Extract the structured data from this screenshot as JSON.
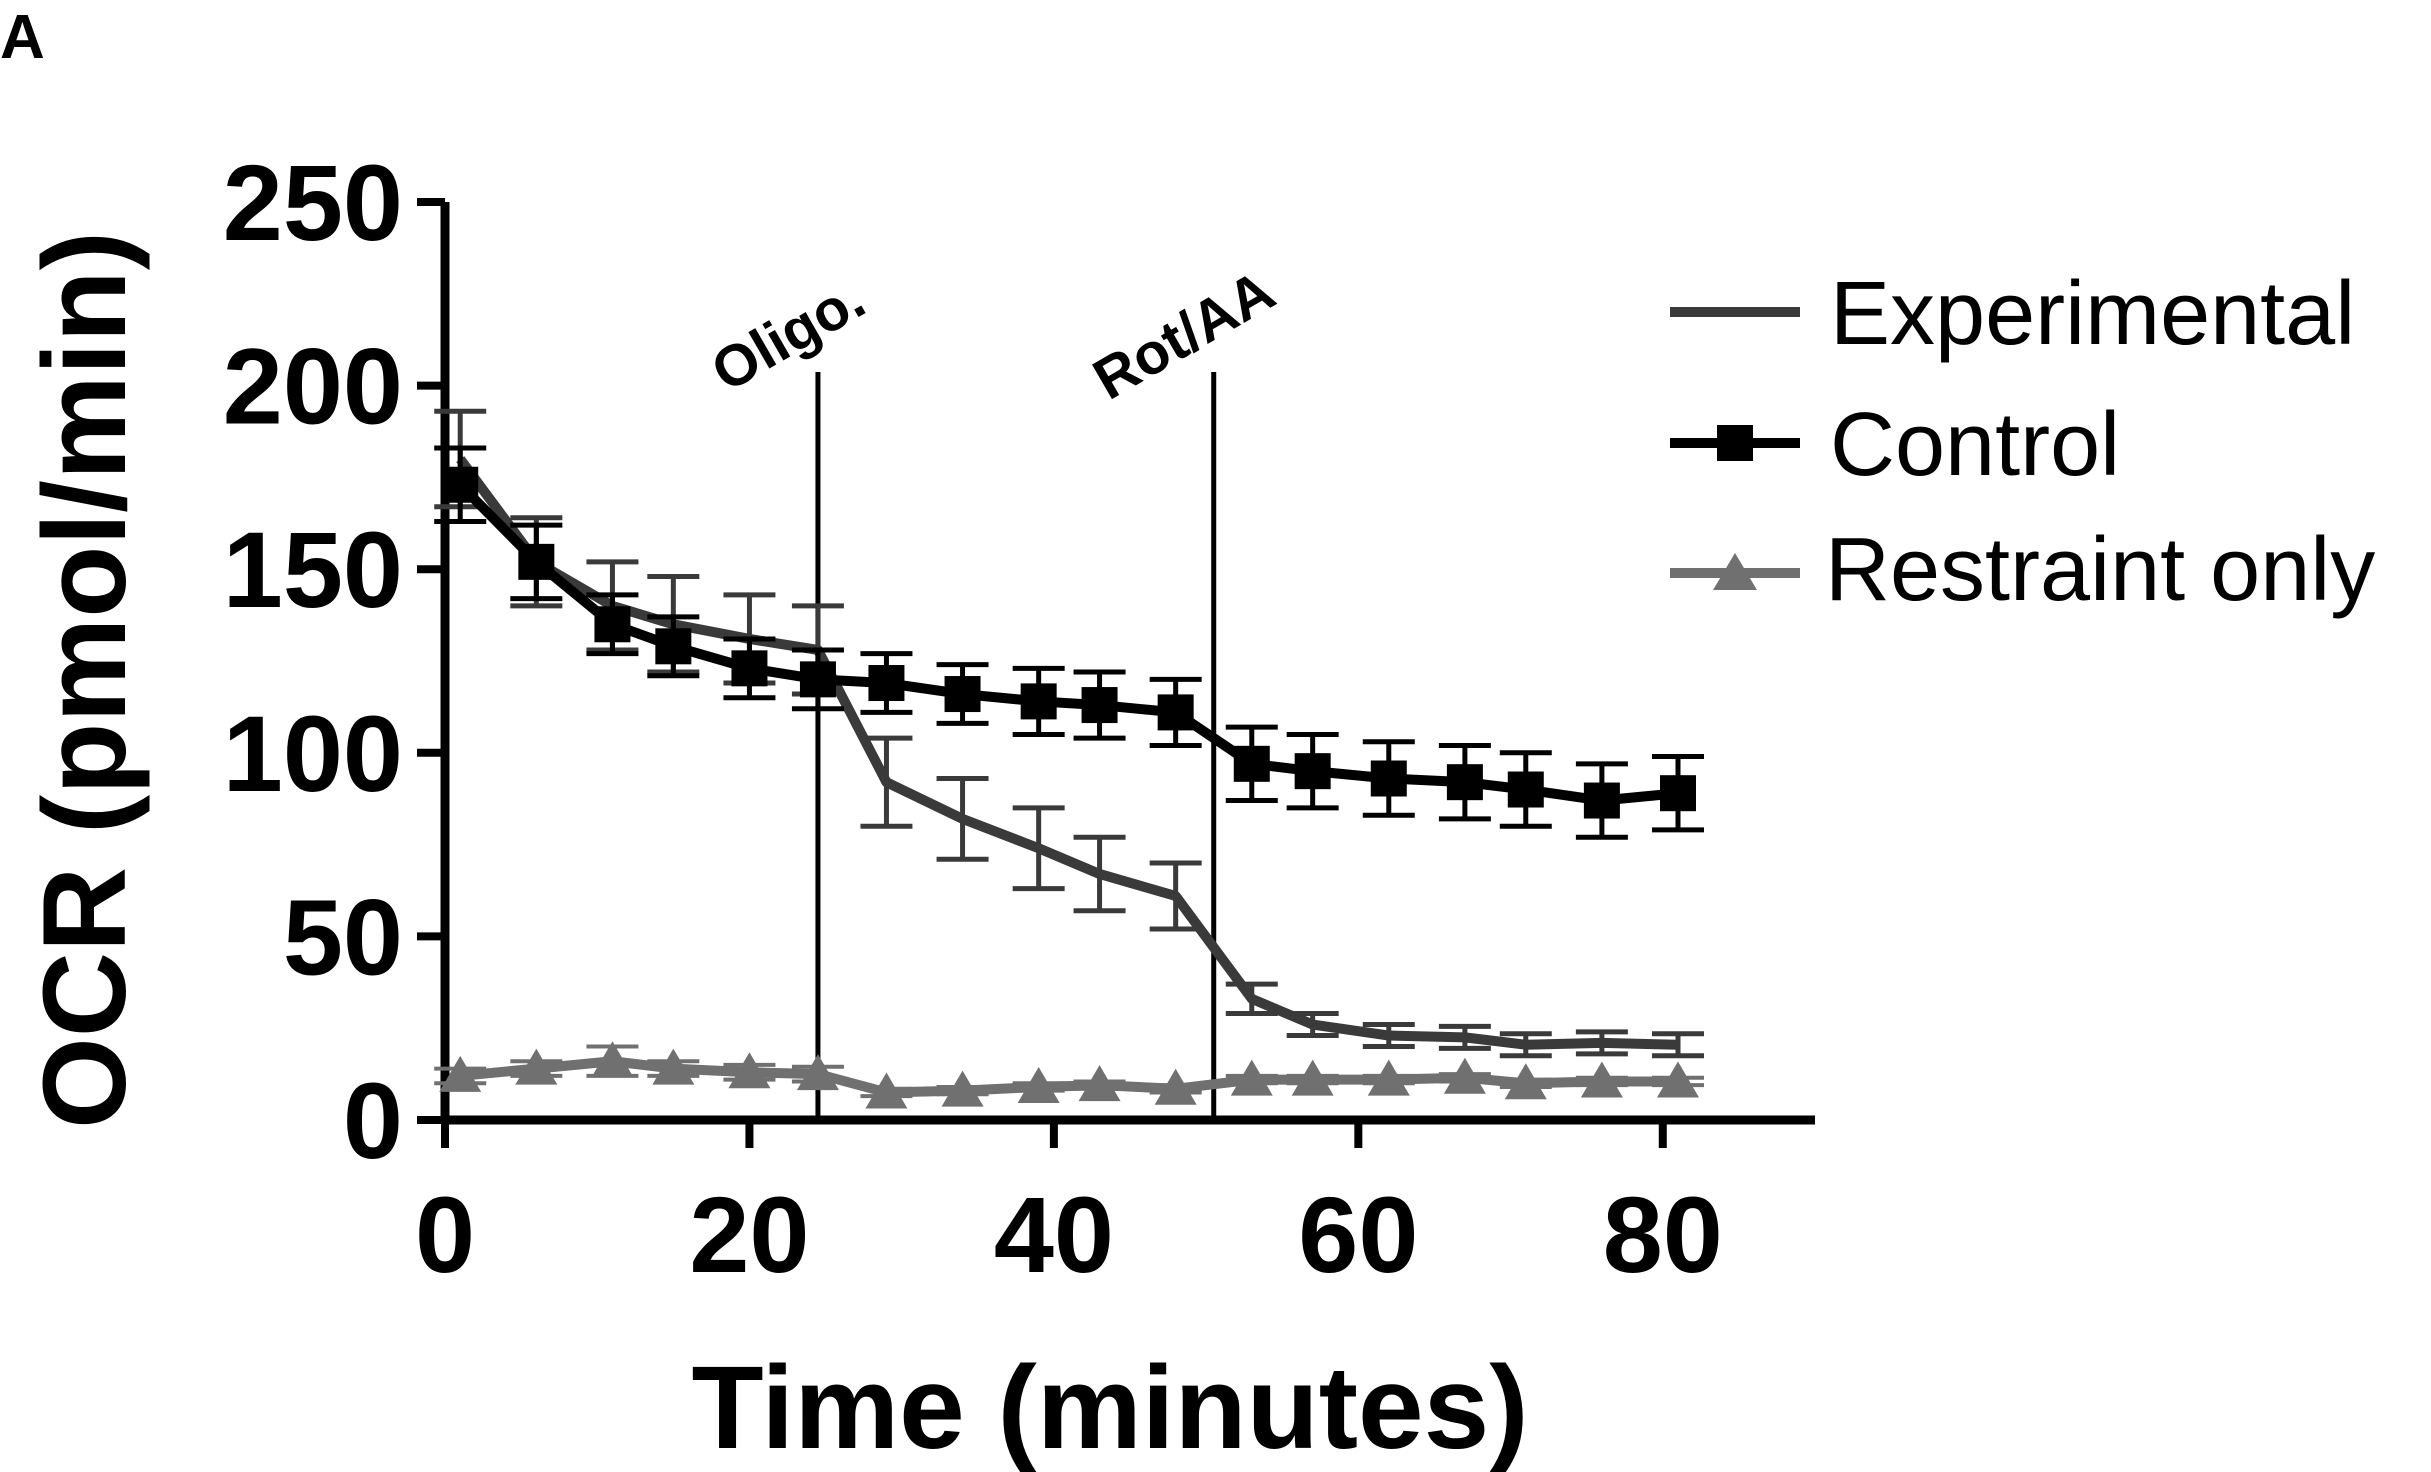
{
  "panel_label": "A",
  "colors": {
    "axis": "#000000",
    "experimental": "#3a3a3a",
    "control": "#000000",
    "restraint": "#707070"
  },
  "chart_data": {
    "type": "line",
    "title": "",
    "xlabel": "Time (minutes)",
    "ylabel": "OCR (pmol/min)",
    "xlim": [
      0,
      90
    ],
    "ylim": [
      0,
      250
    ],
    "xticks": [
      0,
      20,
      40,
      60,
      80
    ],
    "yticks": [
      0,
      50,
      100,
      150,
      200,
      250
    ],
    "xtick_labels": [
      "0",
      "20",
      "40",
      "60",
      "80"
    ],
    "ytick_labels": [
      "0",
      "50",
      "100",
      "150",
      "200",
      "250"
    ],
    "annotations": [
      {
        "label": "Oligo.",
        "x": 24.5
      },
      {
        "label": "Rot/AA",
        "x": 50.5
      }
    ],
    "legend_position": "right",
    "series": [
      {
        "name": "Experimental",
        "marker": "none",
        "color": "#3a3a3a",
        "x": [
          1,
          6,
          11,
          15,
          20,
          24.5,
          29,
          34,
          39,
          43,
          48,
          53,
          57,
          62,
          67,
          71,
          76,
          81
        ],
        "y": [
          180,
          152,
          140,
          135,
          131,
          128,
          92,
          82,
          74,
          67,
          61,
          33,
          26,
          23,
          22.5,
          20.5,
          21,
          20.5
        ],
        "err": [
          13,
          12,
          12,
          13,
          12,
          12,
          12,
          11,
          11,
          10,
          9,
          4,
          3,
          3,
          3,
          3,
          3,
          3
        ]
      },
      {
        "name": "Control",
        "marker": "square",
        "color": "#000000",
        "x": [
          1,
          6,
          11,
          15,
          20,
          24.5,
          29,
          34,
          39,
          43,
          48,
          53,
          57,
          62,
          67,
          71,
          76,
          81
        ],
        "y": [
          173,
          152,
          135,
          129,
          123,
          120,
          119,
          116,
          114,
          113,
          111,
          97,
          95,
          93,
          92,
          90,
          87,
          89
        ],
        "err": [
          10,
          10,
          8,
          8,
          8,
          8,
          8,
          8,
          9,
          9,
          9,
          10,
          10,
          10,
          10,
          10,
          10,
          10
        ]
      },
      {
        "name": "Restraint only",
        "marker": "triangle",
        "color": "#707070",
        "x": [
          1,
          6,
          11,
          15,
          20,
          24.5,
          29,
          34,
          39,
          43,
          48,
          53,
          57,
          62,
          67,
          71,
          76,
          81
        ],
        "y": [
          12,
          14,
          16,
          14,
          13,
          12.5,
          7.5,
          8,
          9,
          9.5,
          8.5,
          11,
          11,
          11,
          11.5,
          10,
          10.5,
          10.5
        ],
        "err": [
          2,
          2,
          4,
          2,
          2,
          2,
          1,
          1,
          1,
          1,
          1,
          1,
          1,
          1,
          1,
          1,
          1,
          1
        ]
      }
    ]
  }
}
